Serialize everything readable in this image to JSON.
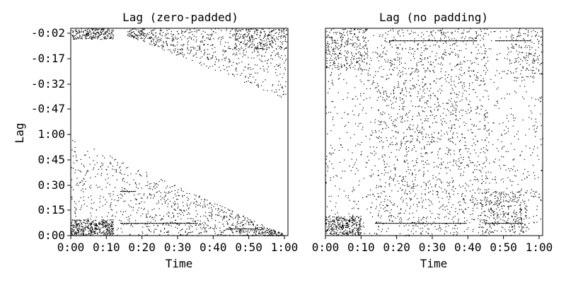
{
  "chart_data": [
    {
      "type": "scatter",
      "title": "Lag (zero-padded)",
      "xlabel": "Time",
      "ylabel": "Lag",
      "x_ticks": [
        "0:00",
        "0:10",
        "0:20",
        "0:30",
        "0:40",
        "0:50",
        "1:00"
      ],
      "x_tick_seconds": [
        0,
        10,
        20,
        30,
        40,
        50,
        60
      ],
      "y_ticks": [
        "-0:02",
        "-0:17",
        "-0:32",
        "-0:47",
        "1:00",
        "0:45",
        "0:30",
        "0:15",
        "0:00"
      ],
      "y_tick_lag_seconds": [
        -2,
        -17,
        -32,
        -47,
        60,
        45,
        30,
        15,
        0
      ],
      "xlim": [
        0,
        61
      ],
      "ylim_top": -2,
      "ylim_bottom": 0,
      "grid": false,
      "colors": {
        "marks": "#000000",
        "background": "#ffffff"
      }
    },
    {
      "type": "scatter",
      "title": "Lag (no padding)",
      "xlabel": "Time",
      "ylabel": "",
      "x_ticks": [
        "0:00",
        "0:10",
        "0:20",
        "0:30",
        "0:40",
        "0:50",
        "1:00"
      ],
      "x_tick_seconds": [
        0,
        10,
        20,
        30,
        40,
        50,
        60
      ],
      "y_ticks": [],
      "xlim": [
        0,
        61
      ],
      "grid": false,
      "colors": {
        "marks": "#000000",
        "background": "#ffffff"
      }
    }
  ]
}
